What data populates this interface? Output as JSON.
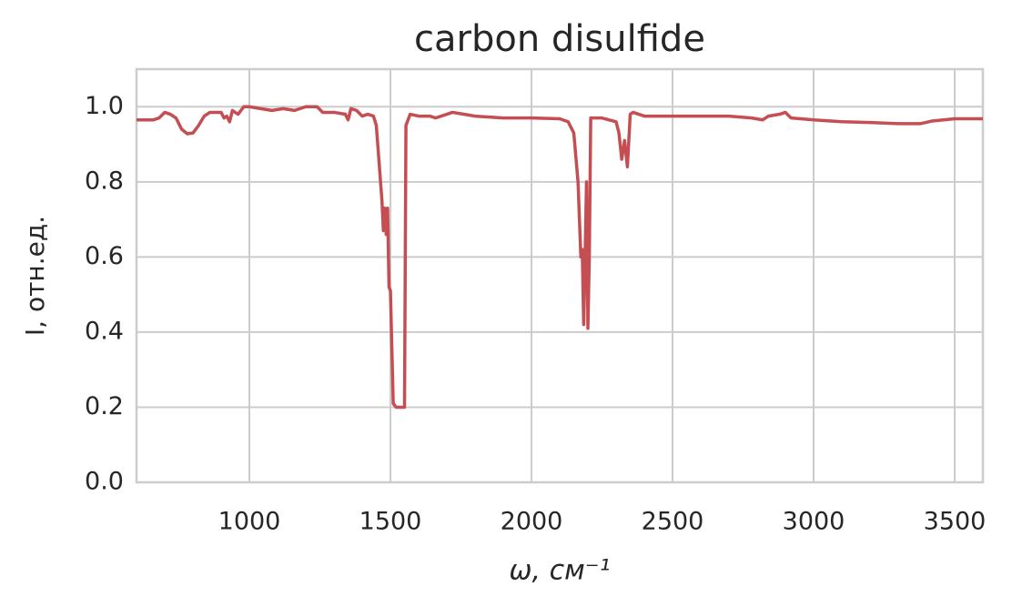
{
  "chart_data": {
    "type": "line",
    "title": "carbon disulfide",
    "xlabel": "ω, см⁻¹",
    "ylabel": "I, отн.ед.",
    "xlim": [
      600,
      3600
    ],
    "ylim": [
      0,
      1.1
    ],
    "xticks": [
      1000,
      1500,
      2000,
      2500,
      3000,
      3500
    ],
    "yticks": [
      {
        "value": 0,
        "label": "0.0"
      },
      0.2,
      0.4,
      0.6,
      0.8,
      {
        "value": 1,
        "label": "1.0"
      }
    ],
    "grid": true,
    "series": [
      {
        "name": "carbon disulfide",
        "color": "#c44e52",
        "x": [
          600,
          660,
          680,
          700,
          720,
          740,
          760,
          780,
          800,
          820,
          840,
          860,
          880,
          900,
          910,
          920,
          930,
          940,
          960,
          980,
          1000,
          1040,
          1080,
          1120,
          1160,
          1200,
          1240,
          1260,
          1300,
          1340,
          1350,
          1360,
          1380,
          1400,
          1420,
          1440,
          1450,
          1460,
          1470,
          1475,
          1480,
          1485,
          1490,
          1495,
          1500,
          1510,
          1520,
          1550,
          1555,
          1570,
          1600,
          1640,
          1660,
          1700,
          1720,
          1760,
          1800,
          1900,
          2000,
          2100,
          2130,
          2150,
          2165,
          2175,
          2180,
          2185,
          2190,
          2195,
          2200,
          2205,
          2210,
          2250,
          2300,
          2310,
          2320,
          2330,
          2340,
          2350,
          2360,
          2400,
          2500,
          2700,
          2780,
          2820,
          2840,
          2880,
          2900,
          2920,
          3000,
          3100,
          3200,
          3300,
          3380,
          3420,
          3500,
          3600
        ],
        "values": [
          0.965,
          0.965,
          0.97,
          0.985,
          0.98,
          0.97,
          0.94,
          0.928,
          0.93,
          0.95,
          0.975,
          0.985,
          0.985,
          0.985,
          0.97,
          0.975,
          0.96,
          0.99,
          0.98,
          1.0,
          1.0,
          0.995,
          0.99,
          0.995,
          0.99,
          1.0,
          1.0,
          0.985,
          0.985,
          0.98,
          0.965,
          0.995,
          0.99,
          0.975,
          0.98,
          0.975,
          0.95,
          0.85,
          0.75,
          0.67,
          0.73,
          0.66,
          0.73,
          0.52,
          0.51,
          0.21,
          0.2,
          0.2,
          0.95,
          0.98,
          0.975,
          0.975,
          0.97,
          0.98,
          0.985,
          0.98,
          0.975,
          0.97,
          0.97,
          0.968,
          0.96,
          0.93,
          0.8,
          0.6,
          0.62,
          0.42,
          0.6,
          0.8,
          0.41,
          0.6,
          0.97,
          0.97,
          0.96,
          0.93,
          0.86,
          0.91,
          0.84,
          0.98,
          0.985,
          0.975,
          0.975,
          0.975,
          0.97,
          0.965,
          0.975,
          0.98,
          0.985,
          0.97,
          0.965,
          0.96,
          0.958,
          0.955,
          0.955,
          0.962,
          0.968,
          0.968
        ]
      }
    ]
  }
}
